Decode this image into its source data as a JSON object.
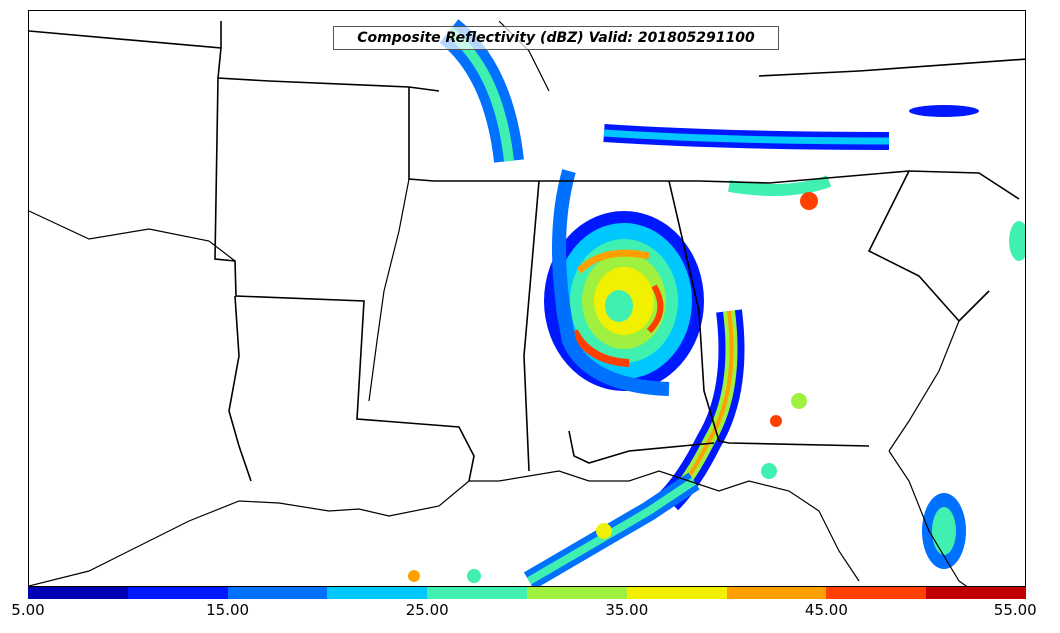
{
  "map": {
    "title": "Composite Reflectivity (dBZ) Valid: 201805291100",
    "region": "Southeastern United States"
  },
  "colorbar": {
    "min": 5.0,
    "max": 55.0,
    "step": 5,
    "tick_labels": [
      "5.00",
      "15.00",
      "25.00",
      "35.00",
      "45.00",
      "55.00"
    ],
    "colors": [
      "#0000b4",
      "#0018ff",
      "#0070ff",
      "#00c8ff",
      "#40f0b0",
      "#a0f040",
      "#f0f000",
      "#ffa000",
      "#ff4000",
      "#c00000"
    ]
  }
}
